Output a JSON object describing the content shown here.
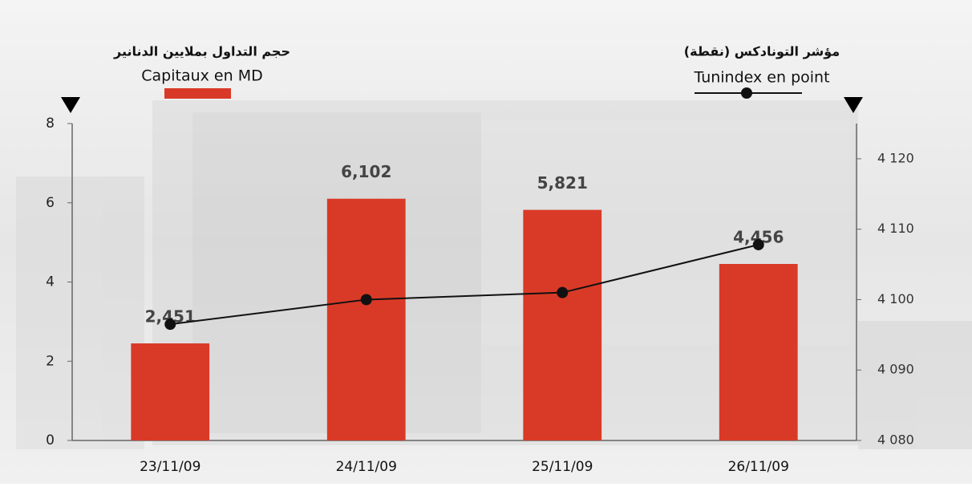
{
  "chart_data": {
    "type": "bar_line",
    "categories": [
      "23/11/09",
      "24/11/09",
      "25/11/09",
      "26/11/09"
    ],
    "series": [
      {
        "name": "Capitaux en MD",
        "label_ar": "حجم التداول بملايين الدنانير",
        "type": "bar",
        "color": "#d93a27",
        "axis": "y",
        "values": [
          2.451,
          6.102,
          5.821,
          4.456
        ],
        "value_labels": [
          "2,451",
          "6,102",
          "5,821",
          "4,456"
        ]
      },
      {
        "name": "Tunindex en point",
        "label_ar": "مؤشر التونادكس (نقطة)",
        "type": "line",
        "color": "#111111",
        "axis": "y2",
        "values": [
          4096.5,
          4100,
          4101,
          4107.8
        ]
      }
    ],
    "ylim": [
      0,
      8
    ],
    "yticks": [
      0,
      2,
      4,
      6,
      8
    ],
    "y2lim": [
      4080,
      4125
    ],
    "y2ticks": [
      {
        "value": 4080,
        "label": "4 080"
      },
      {
        "value": 4090,
        "label": "4 090"
      },
      {
        "value": 4100,
        "label": "4 100"
      },
      {
        "value": 4110,
        "label": "4 110"
      },
      {
        "value": 4120,
        "label": "4 120"
      }
    ],
    "grid": false
  }
}
